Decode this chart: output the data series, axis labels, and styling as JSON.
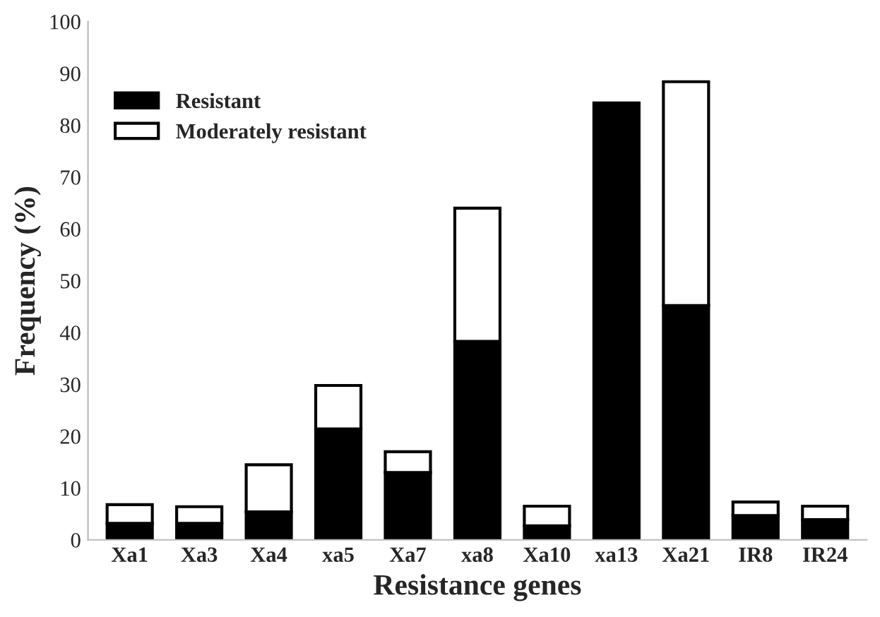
{
  "chart_data": {
    "type": "bar",
    "stacked": true,
    "xlabel": "Resistance genes",
    "ylabel": "Frequency (%)",
    "categories": [
      "Xa1",
      "Xa3",
      "Xa4",
      "xa5",
      "Xa7",
      "xa8",
      "Xa10",
      "xa13",
      "Xa21",
      "IR8",
      "IR24"
    ],
    "series": [
      {
        "name": "Resistant",
        "color": "#000000",
        "values": [
          3.2,
          3.2,
          5.4,
          21.4,
          13.0,
          38.3,
          2.7,
          84.3,
          45.2,
          4.7,
          3.9
        ]
      },
      {
        "name": "Moderately resistant",
        "color": "#ffffff",
        "values": [
          3.6,
          3.2,
          9.1,
          8.4,
          4.0,
          25.7,
          3.8,
          null,
          43.2,
          2.6,
          2.6
        ]
      }
    ],
    "ylim": [
      0,
      100
    ],
    "yticks": [
      0,
      10,
      20,
      30,
      40,
      50,
      60,
      70,
      80,
      90,
      100
    ],
    "grid": false,
    "legend": "top left"
  }
}
